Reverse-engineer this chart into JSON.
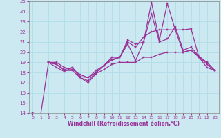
{
  "xlabel": "Windchill (Refroidissement éolien,°C)",
  "background_color": "#cce8f0",
  "grid_color": "#b0dde8",
  "line_color": "#993399",
  "ylim": [
    14,
    25
  ],
  "xlim": [
    -0.5,
    23.5
  ],
  "yticks": [
    14,
    15,
    16,
    17,
    18,
    19,
    20,
    21,
    22,
    23,
    24,
    25
  ],
  "xticks": [
    0,
    1,
    2,
    3,
    4,
    5,
    6,
    7,
    8,
    9,
    10,
    11,
    12,
    13,
    14,
    15,
    16,
    17,
    18,
    19,
    20,
    21,
    22,
    23
  ],
  "series": [
    {
      "comment": "bottom line - starts at 14, goes low then rises slowly",
      "x": [
        0,
        1,
        2,
        3,
        4,
        5,
        6,
        7,
        8,
        9,
        10,
        11,
        12,
        13,
        14,
        15,
        16,
        17,
        18,
        19,
        20,
        21,
        22,
        23
      ],
      "y": [
        14.0,
        13.8,
        19.0,
        18.8,
        18.2,
        18.2,
        17.5,
        17.0,
        17.9,
        18.3,
        18.8,
        19.0,
        19.0,
        19.0,
        19.5,
        19.5,
        19.8,
        20.0,
        20.0,
        20.0,
        20.2,
        19.5,
        18.5,
        18.2
      ]
    },
    {
      "comment": "second line - starts at 19, dips then rises gradually",
      "x": [
        2,
        3,
        4,
        5,
        6,
        7,
        8,
        9,
        10,
        11,
        12,
        13,
        14,
        15,
        16,
        17,
        18,
        19,
        20,
        21,
        22,
        23
      ],
      "y": [
        19.0,
        18.5,
        18.1,
        18.5,
        17.6,
        17.5,
        18.0,
        18.7,
        19.3,
        19.5,
        20.8,
        19.2,
        21.0,
        23.8,
        21.0,
        21.3,
        22.5,
        20.2,
        20.5,
        19.6,
        18.8,
        18.2
      ]
    },
    {
      "comment": "third line - starts at 19, moderate rise",
      "x": [
        2,
        3,
        4,
        5,
        6,
        7,
        8,
        9,
        10,
        11,
        12,
        13,
        14,
        15,
        16,
        17,
        18,
        19,
        20,
        21,
        22,
        23
      ],
      "y": [
        19.0,
        19.0,
        18.5,
        18.3,
        17.8,
        17.5,
        18.2,
        18.7,
        19.5,
        19.5,
        21.0,
        20.5,
        21.5,
        22.0,
        22.2,
        22.2,
        22.2,
        20.0,
        20.2,
        19.6,
        19.0,
        18.2
      ]
    },
    {
      "comment": "top line - big spike at 15 reaching 25, spike at 17 reaching 24.8",
      "x": [
        2,
        3,
        4,
        5,
        6,
        7,
        8,
        9,
        10,
        11,
        12,
        13,
        14,
        15,
        16,
        17,
        18,
        19,
        20,
        21,
        22,
        23
      ],
      "y": [
        19.0,
        18.8,
        18.3,
        18.5,
        17.5,
        17.2,
        18.0,
        18.7,
        19.2,
        19.5,
        21.2,
        20.8,
        21.0,
        24.9,
        21.2,
        24.8,
        22.2,
        22.2,
        22.3,
        19.5,
        19.0,
        18.2
      ]
    }
  ]
}
